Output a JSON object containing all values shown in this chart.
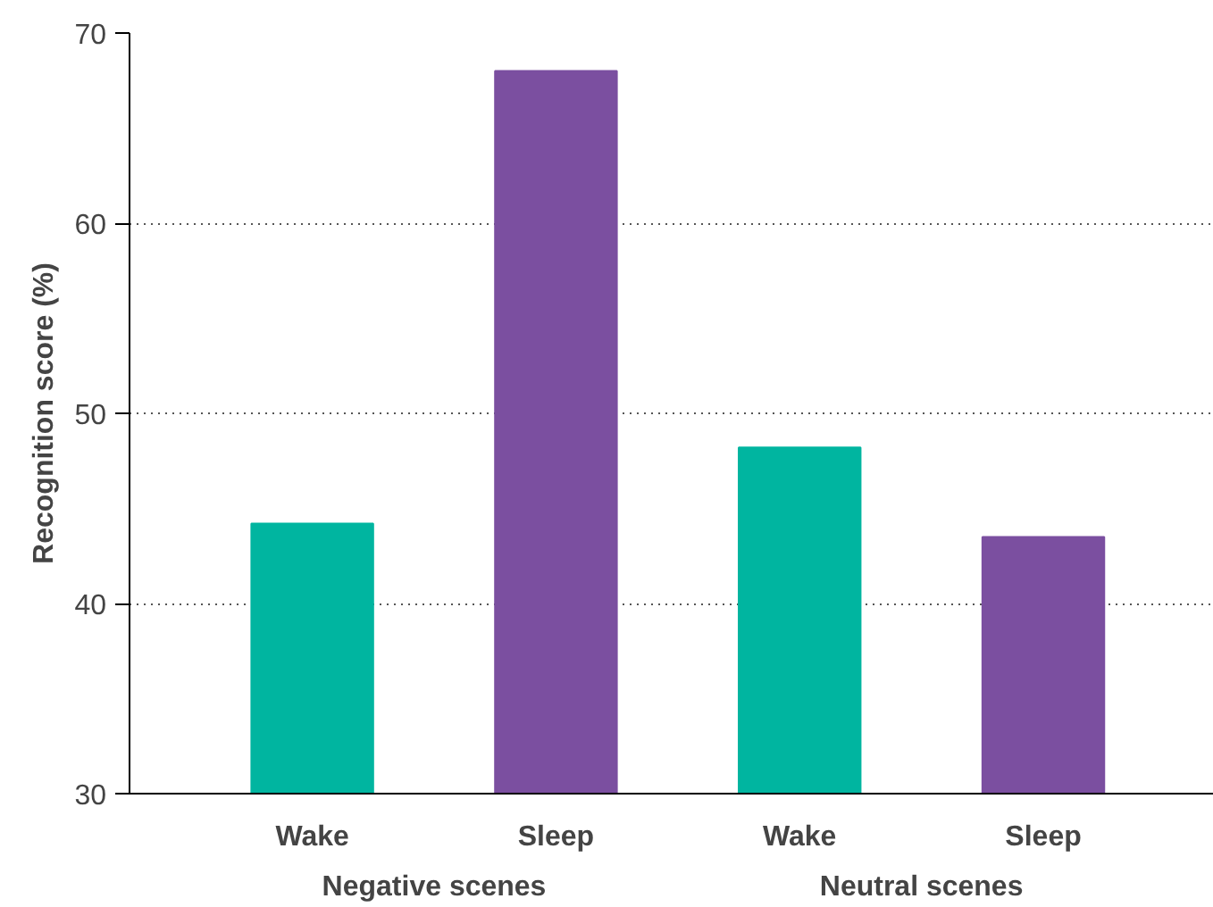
{
  "chart_data": {
    "type": "bar",
    "ylabel": "Recognition score (%)",
    "categories": [
      "Wake",
      "Sleep",
      "Wake",
      "Sleep"
    ],
    "values": [
      44.2,
      68,
      48.2,
      43.5
    ],
    "colors": [
      "#00b5a0",
      "#7b4fa0",
      "#00b5a0",
      "#7b4fa0"
    ],
    "ylim": [
      30,
      70
    ],
    "yticks": [
      30,
      40,
      50,
      60,
      70
    ],
    "grid": "y",
    "annotations": [
      "Negative scenes",
      "Neutral scenes"
    ]
  }
}
